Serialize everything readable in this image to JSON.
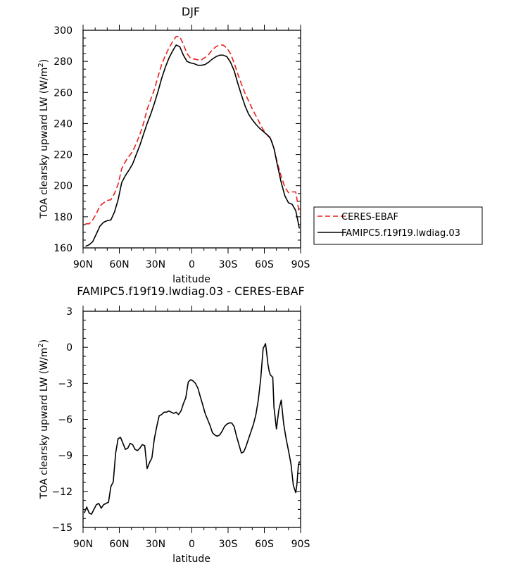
{
  "chart_data": [
    {
      "type": "line",
      "title": "DJF",
      "xlabel": "latitude",
      "ylabel": "TOA clearsky upward LW (W/m²)",
      "ylabel_main": "TOA clearsky upward LW (W/m",
      "ylabel_sup": "2",
      "ylabel_end": ")",
      "xlim": [
        -90,
        90
      ],
      "ylim": [
        160,
        300
      ],
      "x_ticks": [
        -90,
        -60,
        -30,
        0,
        30,
        60,
        90
      ],
      "x_tick_labels": [
        "90N",
        "60N",
        "30N",
        "0",
        "30S",
        "60S",
        "90S"
      ],
      "y_ticks": [
        160,
        180,
        200,
        220,
        240,
        260,
        280,
        300
      ],
      "y_tick_labels": [
        "160",
        "180",
        "200",
        "220",
        "240",
        "260",
        "280",
        "300"
      ],
      "legend_position": "right",
      "series": [
        {
          "name": "CERES-EBAF",
          "color": "#e8201c",
          "dash": "dashed",
          "x": [
            -88,
            -85,
            -82,
            -79,
            -76,
            -73,
            -70,
            -67,
            -64,
            -61,
            -58,
            -55,
            -52,
            -49,
            -46,
            -43,
            -40,
            -37,
            -34,
            -31,
            -28,
            -25,
            -22,
            -19,
            -16,
            -13,
            -10,
            -7,
            -4,
            -1,
            2,
            5,
            8,
            11,
            14,
            17,
            20,
            23,
            26,
            29,
            32,
            35,
            38,
            41,
            44,
            47,
            50,
            53,
            56,
            59,
            62,
            65,
            68,
            71,
            74,
            77,
            80,
            83,
            86,
            89
          ],
          "y": [
            175.5,
            175.5,
            178,
            182,
            187,
            189,
            190.5,
            191,
            195,
            201,
            211,
            215.5,
            219,
            222,
            227,
            233,
            240,
            249,
            255.5,
            262,
            270,
            278,
            283.5,
            288.5,
            292.5,
            296,
            296,
            291,
            285,
            282,
            281.5,
            281,
            281,
            282.5,
            284.5,
            287.5,
            289.5,
            290.5,
            290.5,
            288.5,
            285,
            279,
            272,
            265.5,
            259.5,
            254.5,
            249.5,
            245,
            240.5,
            236,
            233,
            231,
            224,
            214,
            206,
            199,
            195.5,
            196,
            196,
            182
          ]
        },
        {
          "name": "FAMIPC5.f19f19.lwdiag.03",
          "color": "#000000",
          "dash": "solid",
          "x": [
            -88,
            -85,
            -82,
            -79,
            -76,
            -73,
            -70,
            -67,
            -64,
            -61,
            -58,
            -55,
            -52,
            -49,
            -46,
            -43,
            -40,
            -37,
            -34,
            -31,
            -28,
            -25,
            -22,
            -19,
            -16,
            -13,
            -10,
            -7,
            -4,
            -1,
            2,
            5,
            8,
            11,
            14,
            17,
            20,
            23,
            26,
            29,
            32,
            35,
            38,
            41,
            44,
            47,
            50,
            53,
            56,
            59,
            62,
            65,
            68,
            71,
            74,
            77,
            80,
            83,
            86,
            89
          ],
          "y": [
            161,
            162,
            164,
            169,
            174,
            176.5,
            177.5,
            178,
            183,
            191,
            202,
            206.5,
            210,
            214,
            220,
            226,
            233,
            240,
            246,
            253,
            260.5,
            269,
            276,
            282,
            286.5,
            290.5,
            289.5,
            284,
            280,
            279,
            278.5,
            277.5,
            277.5,
            278,
            279.5,
            281.5,
            283,
            284,
            284,
            283,
            279.5,
            274,
            266,
            258.5,
            251.5,
            246,
            242.5,
            239.5,
            237,
            235,
            233,
            230.5,
            224,
            212.5,
            202,
            193.5,
            189,
            188,
            184,
            172.5
          ]
        }
      ]
    },
    {
      "type": "line",
      "title": "FAMIPC5.f19f19.lwdiag.03 - CERES-EBAF",
      "xlabel": "latitude",
      "ylabel": "TOA clearsky upward LW (W/m²)",
      "ylabel_main": "TOA clearsky upward LW (W/m",
      "ylabel_sup": "2",
      "ylabel_end": ")",
      "xlim": [
        -90,
        90
      ],
      "ylim": [
        -15,
        3
      ],
      "x_ticks": [
        -90,
        -60,
        -30,
        0,
        30,
        60,
        90
      ],
      "x_tick_labels": [
        "90N",
        "60N",
        "30N",
        "0",
        "30S",
        "60S",
        "90S"
      ],
      "y_ticks": [
        -15,
        -12,
        -9,
        -6,
        -3,
        0,
        3
      ],
      "y_tick_labels": [
        "−15",
        "−12",
        "−9",
        "−6",
        "−3",
        "0",
        "3"
      ],
      "series": [
        {
          "color": "#000000",
          "dash": "solid",
          "x": [
            -89,
            -87,
            -85,
            -83,
            -81,
            -79,
            -77,
            -75,
            -73,
            -71,
            -69,
            -67,
            -65,
            -63,
            -61,
            -59,
            -57,
            -55,
            -53,
            -51,
            -49,
            -47,
            -45,
            -43,
            -41,
            -39,
            -37,
            -35,
            -33,
            -31,
            -29,
            -27,
            -25,
            -23,
            -21,
            -19,
            -17,
            -15,
            -13,
            -11,
            -9,
            -7,
            -5,
            -3,
            -1,
            1,
            3,
            5,
            7,
            9,
            11,
            13,
            15,
            17,
            19,
            21,
            23,
            25,
            27,
            29,
            31,
            33,
            35,
            37,
            39,
            41,
            43,
            45,
            47,
            49,
            51,
            53,
            55,
            57,
            59,
            61,
            62,
            63,
            64,
            65,
            66,
            67,
            68,
            70,
            72,
            74,
            76,
            78,
            80,
            82,
            84,
            86,
            87,
            88,
            89
          ],
          "y": [
            -13.8,
            -13.3,
            -13.8,
            -13.9,
            -13.5,
            -13.1,
            -13.0,
            -13.4,
            -13.1,
            -13.0,
            -12.9,
            -11.6,
            -11.2,
            -8.8,
            -7.6,
            -7.5,
            -8.0,
            -8.5,
            -8.4,
            -8.0,
            -8.1,
            -8.5,
            -8.6,
            -8.4,
            -8.1,
            -8.2,
            -10.1,
            -9.6,
            -9.2,
            -7.6,
            -6.6,
            -5.7,
            -5.6,
            -5.4,
            -5.4,
            -5.3,
            -5.4,
            -5.5,
            -5.4,
            -5.6,
            -5.3,
            -4.7,
            -4.2,
            -2.9,
            -2.7,
            -2.8,
            -3.0,
            -3.4,
            -4.1,
            -4.8,
            -5.5,
            -6.0,
            -6.5,
            -7.1,
            -7.3,
            -7.4,
            -7.3,
            -7.0,
            -6.6,
            -6.4,
            -6.3,
            -6.3,
            -6.6,
            -7.4,
            -8.1,
            -8.8,
            -8.7,
            -8.2,
            -7.6,
            -7.0,
            -6.4,
            -5.6,
            -4.4,
            -2.6,
            -0.1,
            0.3,
            -0.5,
            -1.4,
            -2.0,
            -2.3,
            -2.4,
            -2.5,
            -5.0,
            -6.8,
            -5.2,
            -4.4,
            -6.4,
            -7.6,
            -8.6,
            -9.7,
            -11.5,
            -12.1,
            -11.4,
            -10.0,
            -9.5
          ]
        }
      ]
    }
  ]
}
